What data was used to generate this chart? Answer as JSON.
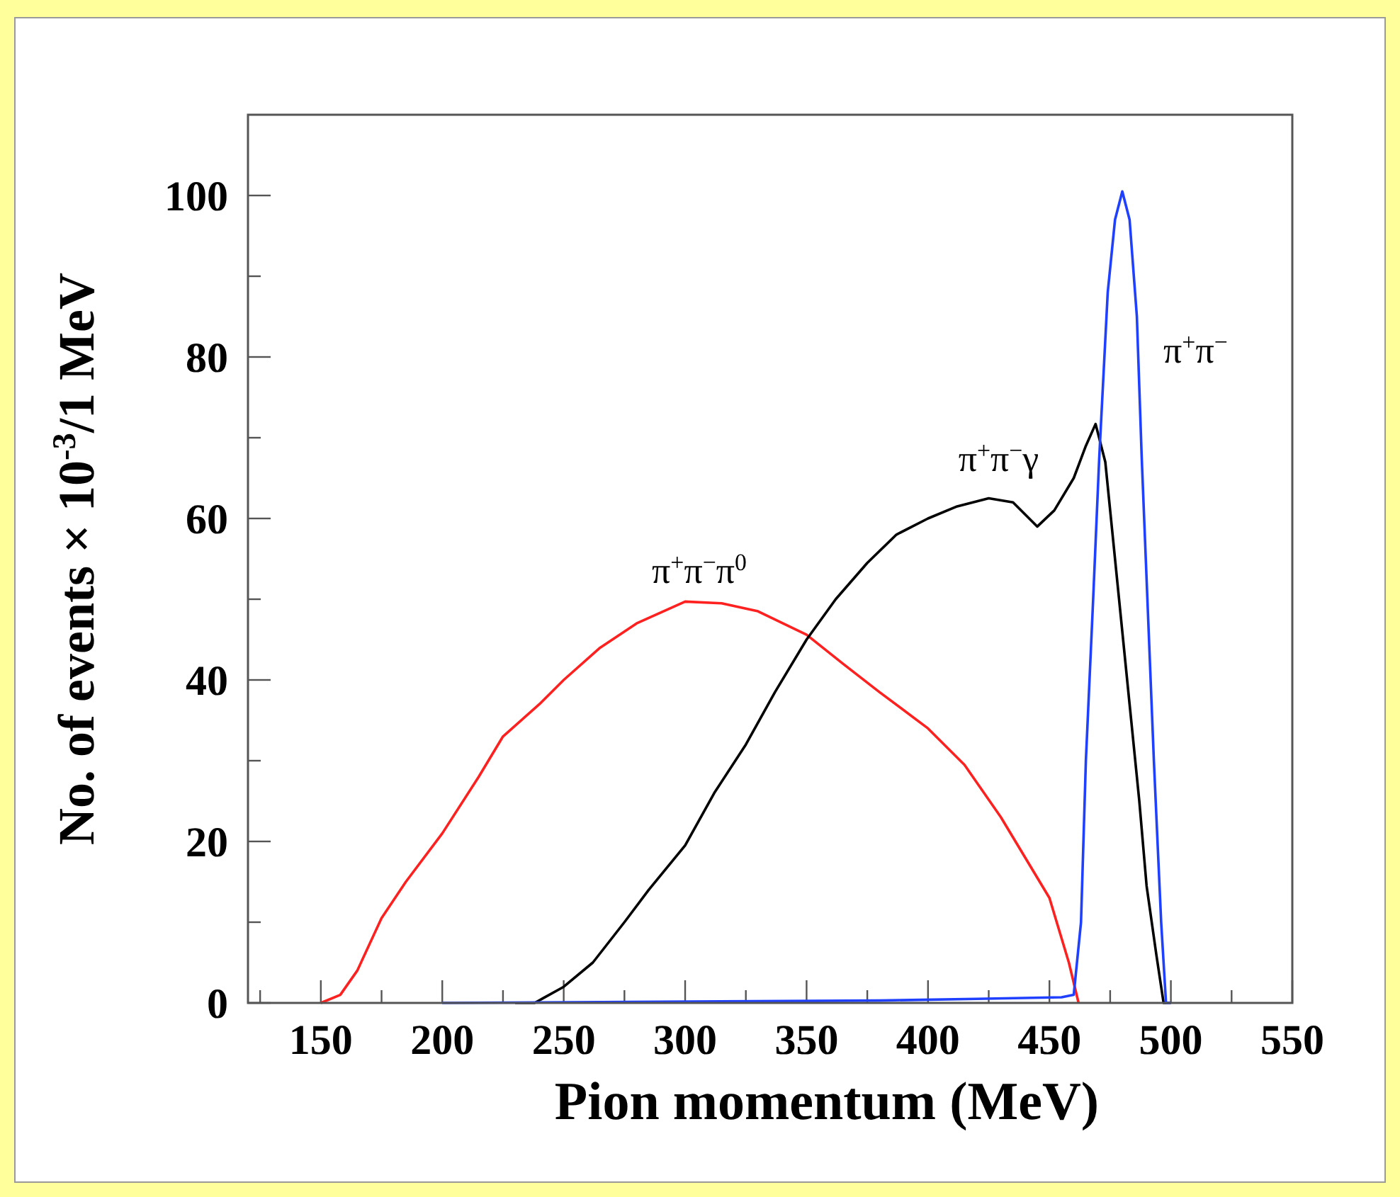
{
  "chart_data": {
    "type": "line",
    "xlabel": "Pion momentum (MeV)",
    "ylabel": "No. of events × 10$^{-3}$/1 MeV",
    "xlim": [
      120,
      550
    ],
    "ylim": [
      0,
      110
    ],
    "xticks": [
      {
        "value": 125,
        "label": null
      },
      150,
      {
        "value": 175,
        "label": null
      },
      200,
      {
        "value": 225,
        "label": null
      },
      250,
      {
        "value": 275,
        "label": null
      },
      300,
      {
        "value": 325,
        "label": null
      },
      350,
      {
        "value": 375,
        "label": null
      },
      400,
      {
        "value": 425,
        "label": null
      },
      450,
      {
        "value": 475,
        "label": null
      },
      500,
      {
        "value": 525,
        "label": null
      },
      550
    ],
    "yticks": [
      0,
      {
        "value": 10,
        "label": null
      },
      20,
      {
        "value": 30,
        "label": null
      },
      40,
      {
        "value": 50,
        "label": null
      },
      60,
      {
        "value": 70,
        "label": null
      },
      80,
      {
        "value": 90,
        "label": null
      },
      100
    ],
    "series": [
      {
        "name": "π$^{+}$π$^{−}$π$^{0}$",
        "color": "#ff2020",
        "x": [
          150,
          158,
          165,
          175,
          185,
          200,
          215,
          225,
          240,
          250,
          265,
          280,
          300,
          315,
          330,
          350,
          365,
          380,
          400,
          415,
          430,
          440,
          450,
          458,
          462
        ],
        "values": [
          0,
          1,
          4,
          10.5,
          15,
          21,
          28,
          33,
          37,
          40,
          44,
          47,
          49.7,
          49.5,
          48.5,
          45.6,
          42,
          38.5,
          34,
          29.5,
          23,
          18,
          13,
          5,
          0
        ]
      },
      {
        "name": "π$^{+}$π$^{−}$γ",
        "color": "#000000",
        "x": [
          230,
          238,
          250,
          262,
          275,
          285,
          300,
          312,
          325,
          337,
          350,
          362,
          375,
          387,
          400,
          412,
          425,
          435,
          445,
          452,
          460,
          465,
          469,
          473,
          478,
          483,
          487,
          490,
          494,
          497,
          500
        ],
        "values": [
          0,
          0,
          2,
          5,
          10,
          14,
          19.5,
          26,
          32,
          38.5,
          45,
          50,
          54.5,
          58,
          60,
          61.5,
          62.5,
          62,
          59,
          61,
          65,
          69,
          71.7,
          67,
          52,
          37,
          25,
          14.5,
          6,
          0,
          0
        ]
      },
      {
        "name": "π$^{+}$π$^{−}$",
        "color": "#2040ff",
        "x": [
          200,
          380,
          420,
          455,
          460,
          463,
          465,
          468,
          470.5,
          474,
          477,
          480,
          483,
          486,
          488,
          491,
          493,
          496,
          498,
          500
        ],
        "values": [
          0,
          0.3,
          0.5,
          0.7,
          1,
          10,
          30,
          50,
          67.5,
          88,
          97,
          100.5,
          97,
          85,
          67.5,
          45,
          30,
          10,
          0,
          0
        ]
      }
    ]
  }
}
